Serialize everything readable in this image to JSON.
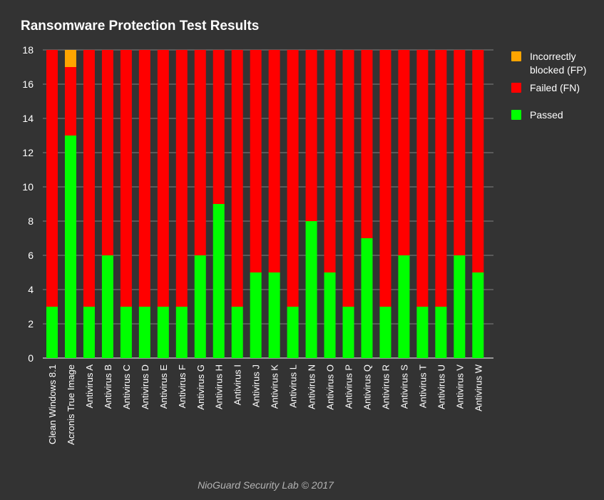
{
  "colors": {
    "background": "#333333",
    "passed": "#00ff00",
    "failed": "#ff0000",
    "fp": "#ffa500",
    "grid": "#808080",
    "text": "#ffffff"
  },
  "footer": "NioGuard Security Lab © 2017",
  "chart_data": {
    "type": "bar",
    "stacked": true,
    "title": "Ransomware Protection Test Results",
    "xlabel": "",
    "ylabel": "",
    "ylim": [
      0,
      18
    ],
    "yticks": [
      0,
      2,
      4,
      6,
      8,
      10,
      12,
      14,
      16,
      18
    ],
    "grid": true,
    "legend_position": "right",
    "categories": [
      "Clean Windows 8.1",
      "Acronis True Image",
      "Antivirus A",
      "Antivirus B",
      "Antivirus C",
      "Antivirus D",
      "Antivirus E",
      "Antivirus F",
      "Antivirus G",
      "Antivirus H",
      "Antivirus I",
      "Antivirus J",
      "Antivirus K",
      "Antivirus L",
      "Antivirus N",
      "Antivirus O",
      "Antivirus P",
      "Antivirus Q",
      "Antivirus R",
      "Antivirus S",
      "Antivirus T",
      "Antivirus U",
      "Antivirus V",
      "Antivirus W"
    ],
    "series": [
      {
        "name": "Passed",
        "color": "#00ff00",
        "values": [
          3,
          13,
          3,
          6,
          3,
          3,
          3,
          3,
          6,
          9,
          3,
          5,
          5,
          3,
          8,
          5,
          3,
          7,
          3,
          6,
          3,
          3,
          6,
          5
        ]
      },
      {
        "name": "Failed (FN)",
        "color": "#ff0000",
        "values": [
          15,
          4,
          15,
          12,
          15,
          15,
          15,
          15,
          12,
          9,
          15,
          13,
          13,
          15,
          10,
          13,
          15,
          11,
          15,
          12,
          15,
          15,
          12,
          13
        ]
      },
      {
        "name": "Incorrectly blocked (FP)",
        "color": "#ffa500",
        "values": [
          0,
          1,
          0,
          0,
          0,
          0,
          0,
          0,
          0,
          0,
          0,
          0,
          0,
          0,
          0,
          0,
          0,
          0,
          0,
          0,
          0,
          0,
          0,
          0
        ]
      }
    ],
    "legend": [
      "Incorrectly blocked (FP)",
      "Failed (FN)",
      "Passed"
    ]
  }
}
